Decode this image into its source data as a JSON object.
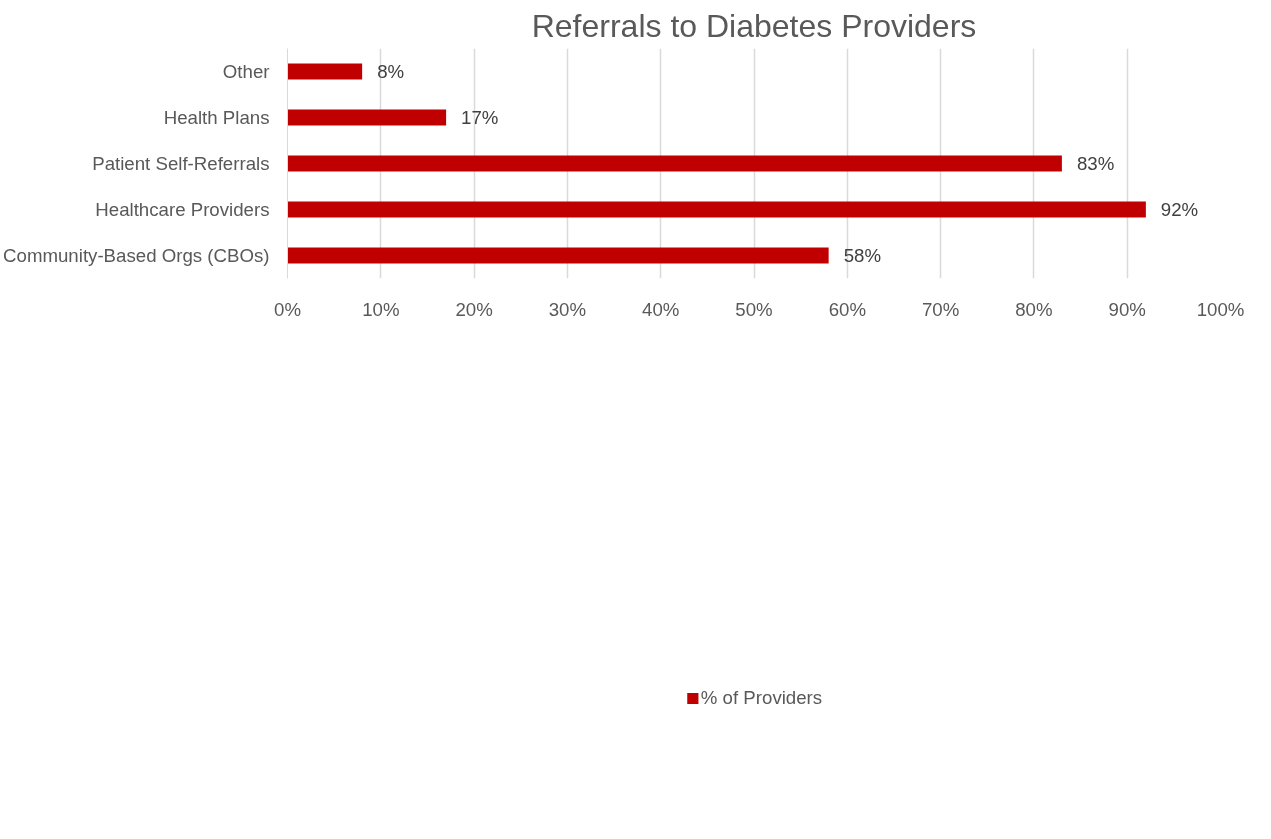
{
  "chart_data": {
    "type": "bar",
    "orientation": "horizontal",
    "title": "Referrals to Diabetes Providers",
    "categories": [
      "Other",
      "Health Plans",
      "Patient Self-Referrals",
      "Healthcare Providers",
      "Community-Based Orgs (CBOs)"
    ],
    "series": [
      {
        "name": "% of Providers",
        "color": "#c00000",
        "values": [
          8,
          17,
          83,
          92,
          58
        ]
      }
    ],
    "value_labels": [
      "8%",
      "17%",
      "83%",
      "92%",
      "58%"
    ],
    "xlim": [
      0,
      100
    ],
    "xticks": [
      {
        "value": 0,
        "label": "0%"
      },
      {
        "value": 10,
        "label": "10%"
      },
      {
        "value": 20,
        "label": "20%"
      },
      {
        "value": 30,
        "label": "30%"
      },
      {
        "value": 40,
        "label": "40%"
      },
      {
        "value": 50,
        "label": "50%"
      },
      {
        "value": 60,
        "label": "60%"
      },
      {
        "value": 70,
        "label": "70%"
      },
      {
        "value": 80,
        "label": "80%"
      },
      {
        "value": 90,
        "label": "90%"
      },
      {
        "value": 100,
        "label": "100%"
      }
    ],
    "grid": "x",
    "legend": "bottom"
  }
}
